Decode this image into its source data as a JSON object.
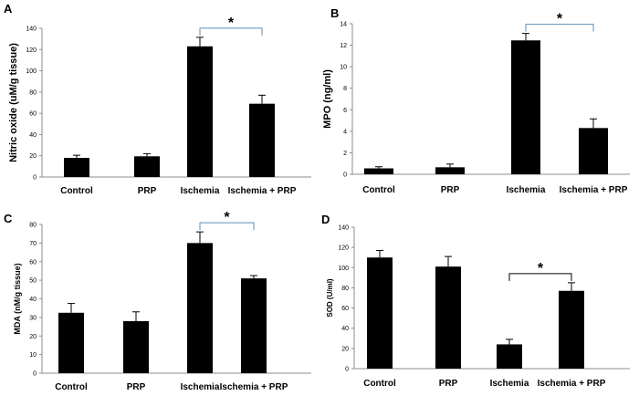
{
  "figure": {
    "panels": [
      {
        "panel_label": "A",
        "chart_data": {
          "type": "bar",
          "categories": [
            "Control",
            "PRP",
            "Ischemia",
            "Ischemia + PRP"
          ],
          "values": [
            18,
            19.5,
            123,
            69
          ],
          "errors": [
            2.5,
            2.5,
            8.5,
            8
          ],
          "ylabel": "Nitric oxide  (uM/g tissue)",
          "xlabel": "",
          "ylim": [
            0,
            140
          ],
          "yticks": [
            "0",
            "20",
            "40",
            "60",
            "80",
            "100",
            "120",
            "140"
          ],
          "significance": {
            "from": 2,
            "to": 3,
            "label": "*"
          }
        }
      },
      {
        "panel_label": "B",
        "chart_data": {
          "type": "bar",
          "categories": [
            "Control",
            "PRP",
            "Ischemia",
            "Ischemia  + PRP"
          ],
          "values": [
            0.55,
            0.65,
            12.45,
            4.3
          ],
          "errors": [
            0.15,
            0.3,
            0.65,
            0.85
          ],
          "ylabel": "MPO (ng/ml)",
          "xlabel": "",
          "ylim": [
            0,
            14
          ],
          "yticks": [
            "0",
            "2",
            "4",
            "6",
            "8",
            "10",
            "12",
            "14"
          ],
          "significance": {
            "from": 2,
            "to": 3,
            "label": "*"
          }
        }
      },
      {
        "panel_label": "C",
        "chart_data": {
          "type": "bar",
          "categories": [
            "Control",
            "PRP",
            "Ischemia",
            "Ischemia + PRP"
          ],
          "values": [
            32.5,
            28,
            70,
            51
          ],
          "errors": [
            5,
            5,
            6,
            1.5
          ],
          "ylabel": "MDA  (nM/g tissue)",
          "xlabel": "",
          "ylim": [
            0,
            80
          ],
          "yticks": [
            "0",
            "10",
            "20",
            "30",
            "40",
            "50",
            "60",
            "70",
            "80"
          ],
          "significance": {
            "from": 2,
            "to": 3,
            "label": "*"
          }
        }
      },
      {
        "panel_label": "D",
        "chart_data": {
          "type": "bar",
          "categories": [
            "Control",
            "PRP",
            "Ischemia",
            "Ischemia + PRP"
          ],
          "values": [
            110,
            101,
            24,
            77
          ],
          "errors": [
            7,
            10,
            5,
            8
          ],
          "ylabel": "SOD (U/ml)",
          "xlabel": "",
          "ylim": [
            0,
            140
          ],
          "yticks": [
            "0",
            "20",
            "40",
            "60",
            "80",
            "100",
            "120",
            "140"
          ],
          "significance": {
            "from": 2,
            "to": 3,
            "label": "*"
          }
        }
      }
    ]
  }
}
